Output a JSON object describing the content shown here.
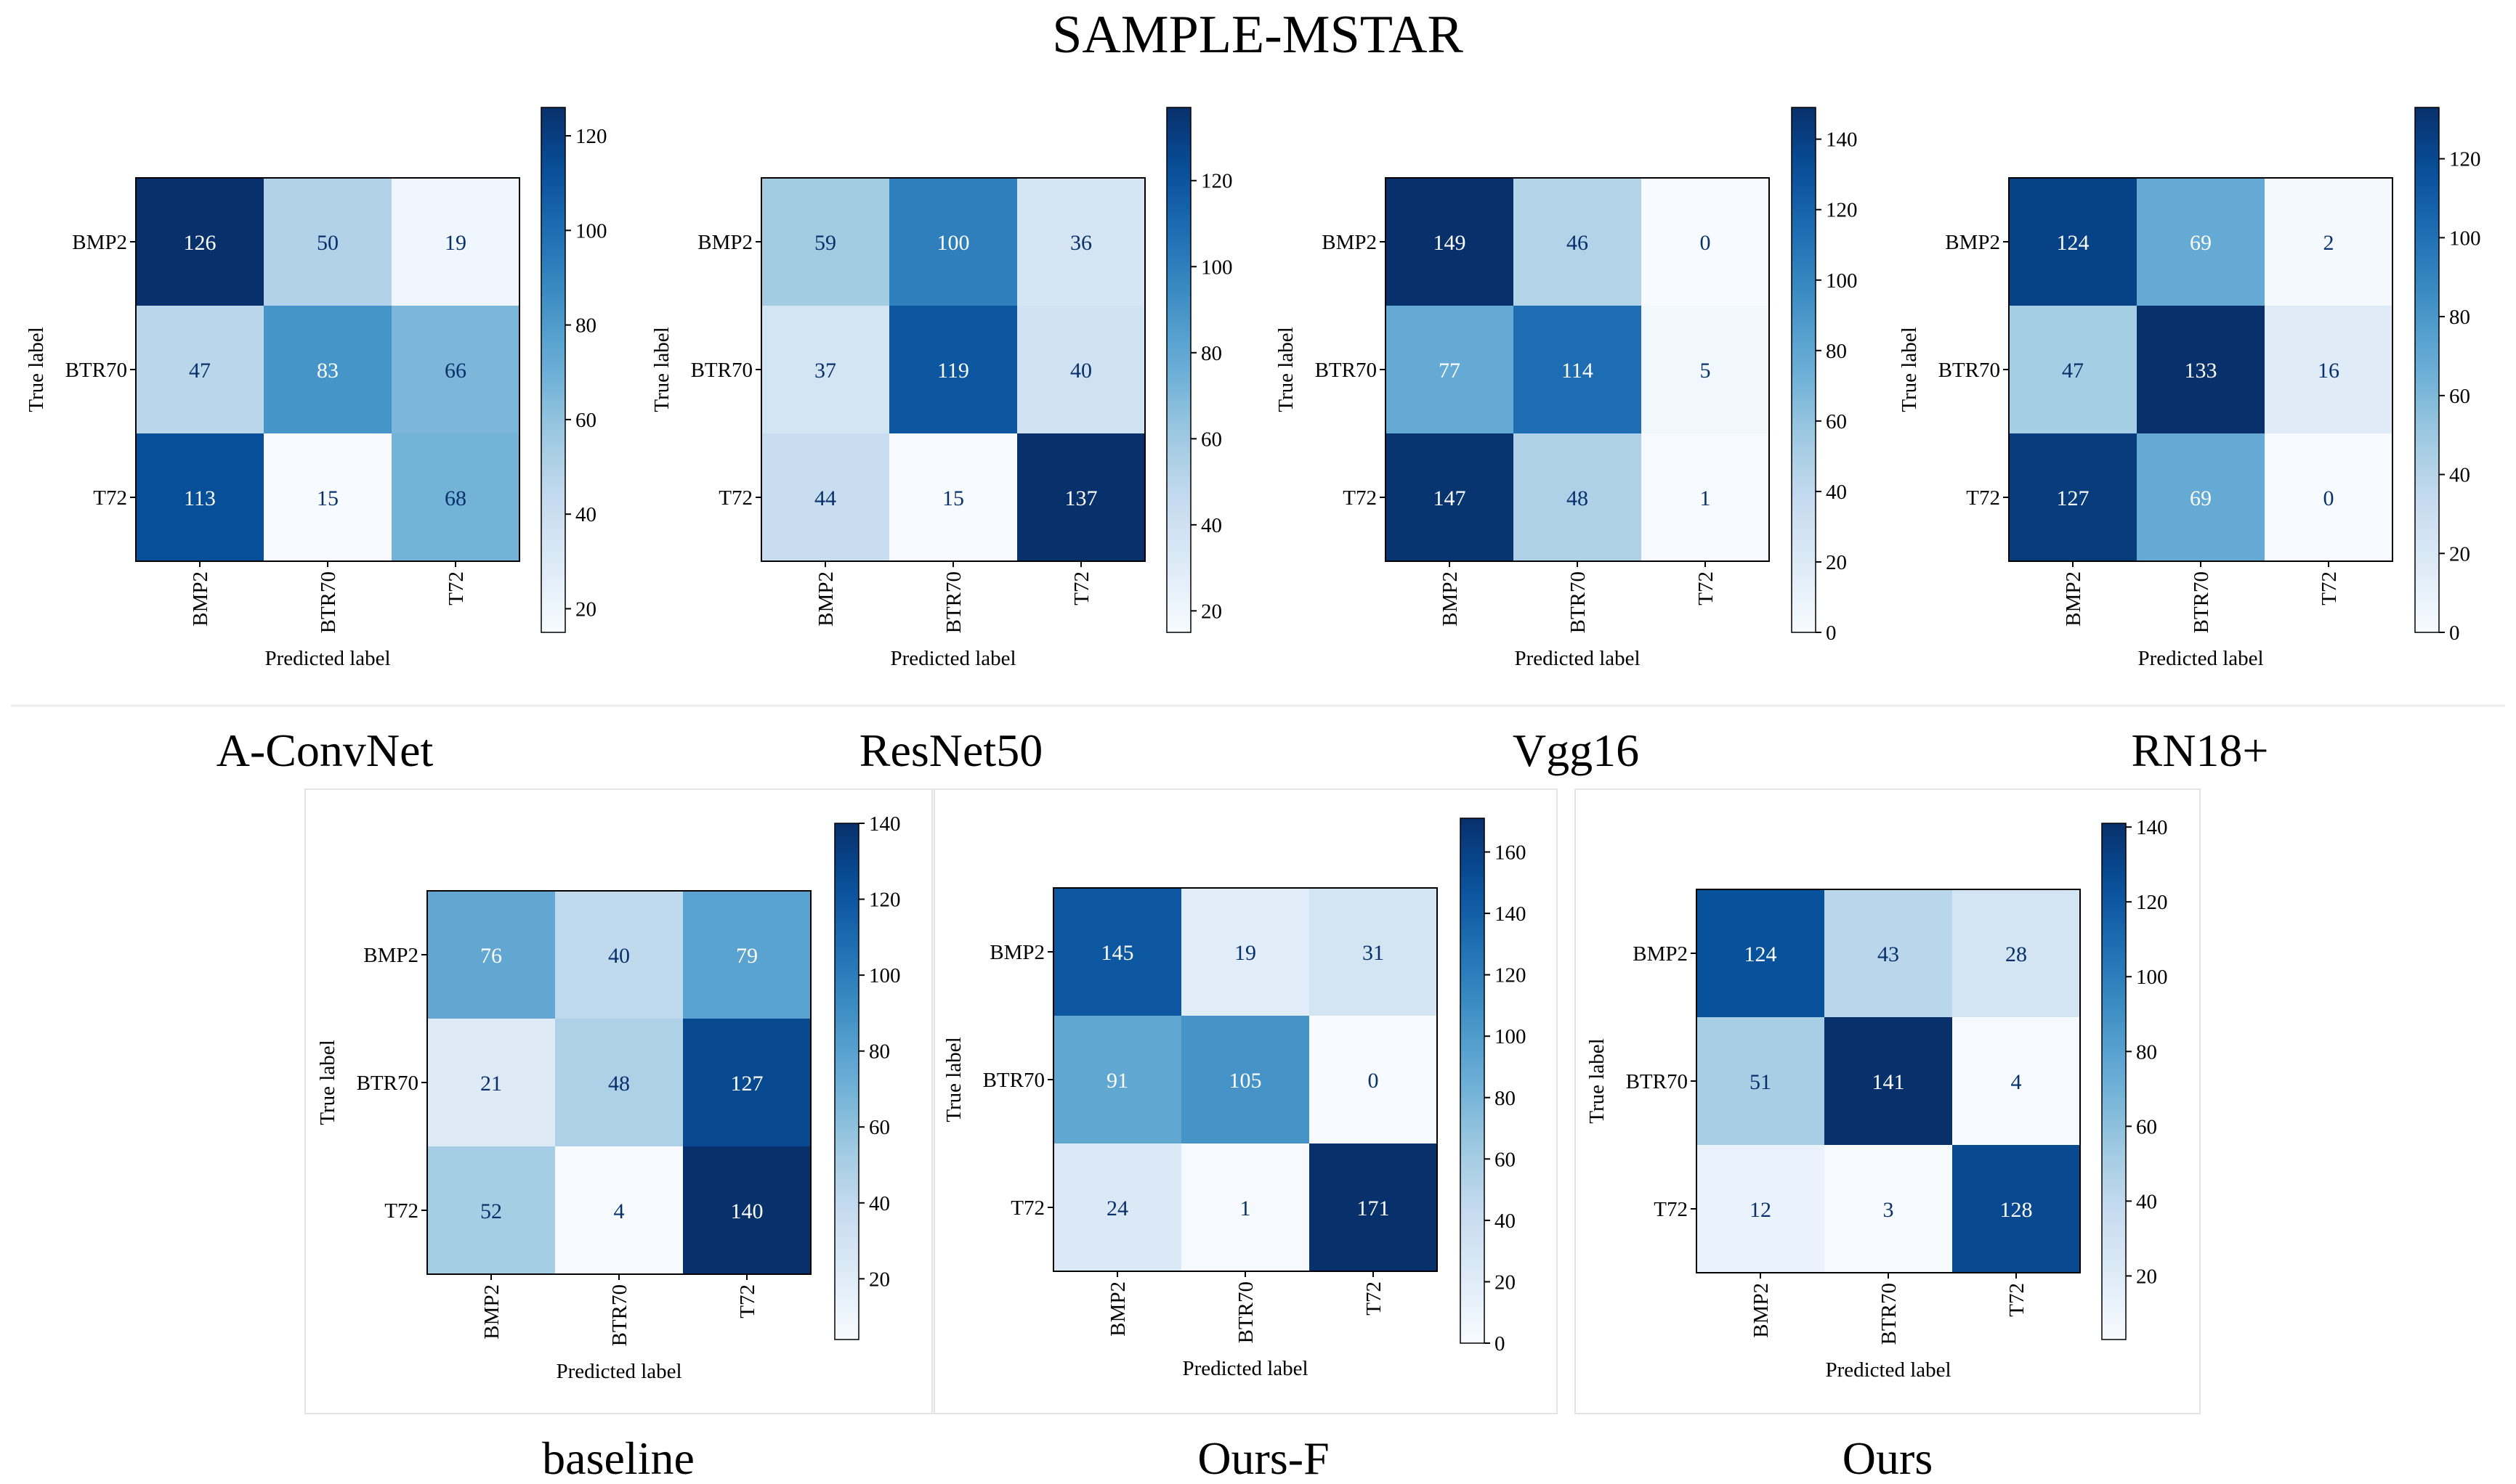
{
  "figure": {
    "title": "SAMPLE-MSTAR",
    "colormap": "Blues",
    "colors": {
      "low": "#f7fbff",
      "high": "#08306b",
      "text_light": "#ffffff",
      "text_dark": "#08306b",
      "frame": "#000000",
      "panel_border": "#e4e4e4"
    }
  },
  "chart_data": [
    {
      "type": "heatmap",
      "caption": "A-ConvNet",
      "row_labels": [
        "BMP2",
        "BTR70",
        "T72"
      ],
      "col_labels": [
        "BMP2",
        "BTR70",
        "T72"
      ],
      "ylabel": "True label",
      "xlabel": "Predicted label",
      "matrix": [
        [
          126,
          50,
          19
        ],
        [
          47,
          83,
          66
        ],
        [
          113,
          15,
          68
        ]
      ],
      "colorbar": {
        "min": 15,
        "max": 126,
        "ticks": [
          20,
          40,
          60,
          80,
          100,
          120
        ]
      }
    },
    {
      "type": "heatmap",
      "caption": "ResNet50",
      "row_labels": [
        "BMP2",
        "BTR70",
        "T72"
      ],
      "col_labels": [
        "BMP2",
        "BTR70",
        "T72"
      ],
      "ylabel": "True label",
      "xlabel": "Predicted label",
      "matrix": [
        [
          59,
          100,
          36
        ],
        [
          37,
          119,
          40
        ],
        [
          44,
          15,
          137
        ]
      ],
      "colorbar": {
        "min": 15,
        "max": 137,
        "ticks": [
          20,
          40,
          60,
          80,
          100,
          120
        ]
      }
    },
    {
      "type": "heatmap",
      "caption": "Vgg16",
      "row_labels": [
        "BMP2",
        "BTR70",
        "T72"
      ],
      "col_labels": [
        "BMP2",
        "BTR70",
        "T72"
      ],
      "ylabel": "True label",
      "xlabel": "Predicted label",
      "matrix": [
        [
          149,
          46,
          0
        ],
        [
          77,
          114,
          5
        ],
        [
          147,
          48,
          1
        ]
      ],
      "colorbar": {
        "min": 0,
        "max": 149,
        "ticks": [
          0,
          20,
          40,
          60,
          80,
          100,
          120,
          140
        ]
      }
    },
    {
      "type": "heatmap",
      "caption": "RN18+",
      "row_labels": [
        "BMP2",
        "BTR70",
        "T72"
      ],
      "col_labels": [
        "BMP2",
        "BTR70",
        "T72"
      ],
      "ylabel": "True label",
      "xlabel": "Predicted label",
      "matrix": [
        [
          124,
          69,
          2
        ],
        [
          47,
          133,
          16
        ],
        [
          127,
          69,
          0
        ]
      ],
      "colorbar": {
        "min": 0,
        "max": 133,
        "ticks": [
          0,
          20,
          40,
          60,
          80,
          100,
          120
        ]
      }
    },
    {
      "type": "heatmap",
      "caption": "baseline",
      "row_labels": [
        "BMP2",
        "BTR70",
        "T72"
      ],
      "col_labels": [
        "BMP2",
        "BTR70",
        "T72"
      ],
      "ylabel": "True label",
      "xlabel": "Predicted label",
      "matrix": [
        [
          76,
          40,
          79
        ],
        [
          21,
          48,
          127
        ],
        [
          52,
          4,
          140
        ]
      ],
      "colorbar": {
        "min": 4,
        "max": 140,
        "ticks": [
          20,
          40,
          60,
          80,
          100,
          120,
          140
        ]
      }
    },
    {
      "type": "heatmap",
      "caption": "Ours-F",
      "row_labels": [
        "BMP2",
        "BTR70",
        "T72"
      ],
      "col_labels": [
        "BMP2",
        "BTR70",
        "T72"
      ],
      "ylabel": "True label",
      "xlabel": "Predicted label",
      "matrix": [
        [
          145,
          19,
          31
        ],
        [
          91,
          105,
          0
        ],
        [
          24,
          1,
          171
        ]
      ],
      "colorbar": {
        "min": 0,
        "max": 171,
        "ticks": [
          0,
          20,
          40,
          60,
          80,
          100,
          120,
          140,
          160
        ]
      }
    },
    {
      "type": "heatmap",
      "caption": "Ours",
      "row_labels": [
        "BMP2",
        "BTR70",
        "T72"
      ],
      "col_labels": [
        "BMP2",
        "BTR70",
        "T72"
      ],
      "ylabel": "True label",
      "xlabel": "Predicted label",
      "matrix": [
        [
          124,
          43,
          28
        ],
        [
          51,
          141,
          4
        ],
        [
          12,
          3,
          128
        ]
      ],
      "colorbar": {
        "min": 3,
        "max": 141,
        "ticks": [
          20,
          40,
          60,
          80,
          100,
          120,
          140
        ]
      }
    }
  ]
}
